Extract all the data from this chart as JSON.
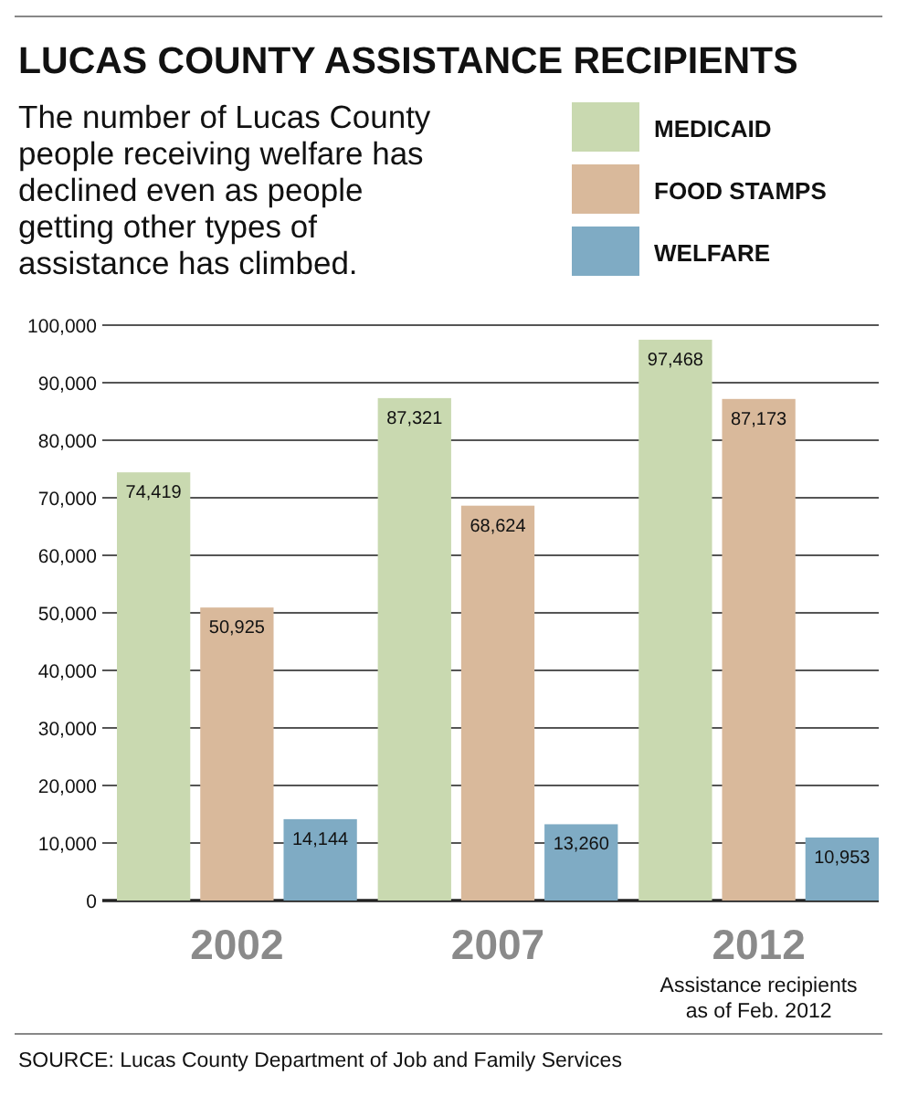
{
  "chart_data": {
    "type": "bar",
    "title": "LUCAS COUNTY ASSISTANCE RECIPIENTS",
    "subtitle": "The number of Lucas County people receiving welfare has declined even as people getting other types of assistance has climbed.",
    "categories": [
      "2002",
      "2007",
      "2012"
    ],
    "series": [
      {
        "name": "MEDICAID",
        "color": "#c9d9b0",
        "values": [
          74419,
          87321,
          97468
        ],
        "value_labels": [
          "74,419",
          "87,321",
          "97,468"
        ]
      },
      {
        "name": "FOOD STAMPS",
        "color": "#d9b99b",
        "values": [
          50925,
          68624,
          87173
        ],
        "value_labels": [
          "50,925",
          "68,624",
          "87,173"
        ]
      },
      {
        "name": "WELFARE",
        "color": "#7fabc4",
        "values": [
          14144,
          13260,
          10953
        ],
        "value_labels": [
          "14,144",
          "13,260",
          "10,953"
        ]
      }
    ],
    "ylim": [
      0,
      100000
    ],
    "yticks": [
      {
        "value": 0,
        "label": "0"
      },
      {
        "value": 10000,
        "label": "10,000"
      },
      {
        "value": 20000,
        "label": "20,000"
      },
      {
        "value": 30000,
        "label": "30,000"
      },
      {
        "value": 40000,
        "label": "40,000"
      },
      {
        "value": 50000,
        "label": "50,000"
      },
      {
        "value": 60000,
        "label": "60,000"
      },
      {
        "value": 70000,
        "label": "70,000"
      },
      {
        "value": 80000,
        "label": "80,000"
      },
      {
        "value": 90000,
        "label": "90,000"
      },
      {
        "value": 100000,
        "label": "100,000"
      }
    ],
    "grid": "y",
    "legend": "top right",
    "annotations": [
      "Assistance recipients as of Feb. 2012",
      "SOURCE: Lucas County Department of Job and Family Services"
    ]
  }
}
